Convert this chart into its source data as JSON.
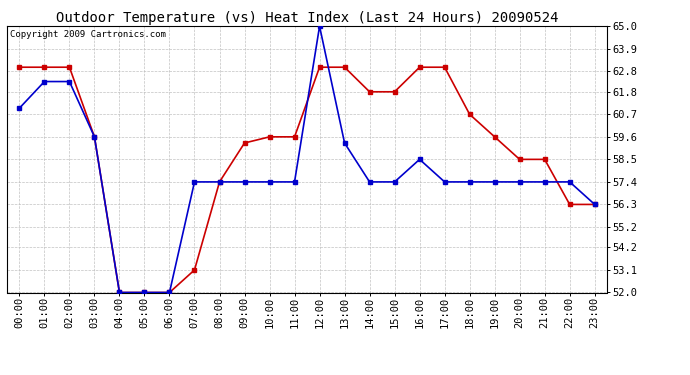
{
  "title": "Outdoor Temperature (vs) Heat Index (Last 24 Hours) 20090524",
  "copyright": "Copyright 2009 Cartronics.com",
  "x_labels": [
    "00:00",
    "01:00",
    "02:00",
    "03:00",
    "04:00",
    "05:00",
    "06:00",
    "07:00",
    "08:00",
    "09:00",
    "10:00",
    "11:00",
    "12:00",
    "13:00",
    "14:00",
    "15:00",
    "16:00",
    "17:00",
    "18:00",
    "19:00",
    "20:00",
    "21:00",
    "22:00",
    "23:00"
  ],
  "y_ticks": [
    52.0,
    53.1,
    54.2,
    55.2,
    56.3,
    57.4,
    58.5,
    59.6,
    60.7,
    61.8,
    62.8,
    63.9,
    65.0
  ],
  "ylim": [
    52.0,
    65.0
  ],
  "blue_data": [
    61.0,
    62.3,
    62.3,
    59.6,
    52.0,
    52.0,
    52.0,
    57.4,
    57.4,
    57.4,
    57.4,
    57.4,
    65.0,
    59.3,
    57.4,
    57.4,
    58.5,
    57.4,
    57.4,
    57.4,
    57.4,
    57.4,
    57.4,
    56.3
  ],
  "red_data": [
    63.0,
    63.0,
    63.0,
    59.6,
    52.0,
    52.0,
    52.0,
    53.1,
    57.4,
    59.3,
    59.6,
    59.6,
    63.0,
    63.0,
    61.8,
    61.8,
    63.0,
    63.0,
    60.7,
    59.6,
    58.5,
    58.5,
    56.3,
    56.3
  ],
  "blue_color": "#0000cc",
  "red_color": "#cc0000",
  "bg_color": "#ffffff",
  "plot_bg_color": "#ffffff",
  "grid_color": "#bbbbbb",
  "title_fontsize": 10,
  "copyright_fontsize": 6.5,
  "tick_fontsize": 7.5
}
